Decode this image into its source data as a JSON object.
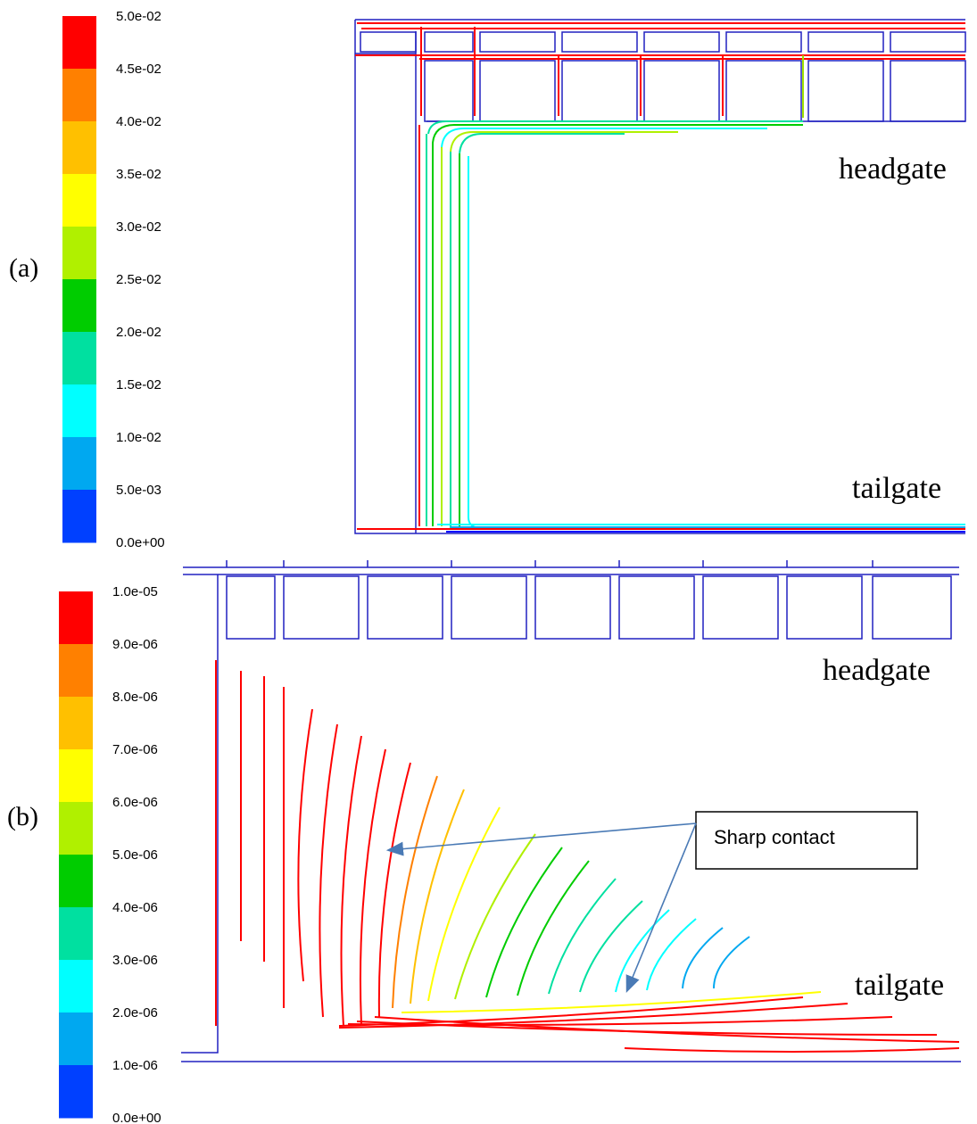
{
  "panel_a": {
    "label": "(a)",
    "colorbar": {
      "ticks": [
        "5.0e-02",
        "4.5e-02",
        "4.0e-02",
        "3.5e-02",
        "3.0e-02",
        "2.5e-02",
        "2.0e-02",
        "1.5e-02",
        "1.0e-02",
        "5.0e-03",
        "0.0e+00"
      ],
      "colors": [
        "#ff0000",
        "#ff8000",
        "#ffc000",
        "#ffff00",
        "#b0f000",
        "#00cc00",
        "#00e0a0",
        "#00ffff",
        "#00a8f0",
        "#0040ff",
        "#0000ff"
      ]
    },
    "headgate_label": "headgate",
    "tailgate_label": "tailgate"
  },
  "panel_b": {
    "label": "(b)",
    "colorbar": {
      "ticks": [
        "1.0e-05",
        "9.0e-06",
        "8.0e-06",
        "7.0e-06",
        "6.0e-06",
        "5.0e-06",
        "4.0e-06",
        "3.0e-06",
        "2.0e-06",
        "1.0e-06",
        "0.0e+00"
      ],
      "colors": [
        "#ff0000",
        "#ff8000",
        "#ffc000",
        "#ffff00",
        "#b0f000",
        "#00cc00",
        "#00e0a0",
        "#00ffff",
        "#00a8f0",
        "#0040ff",
        "#0000ff"
      ]
    },
    "headgate_label": "headgate",
    "tailgate_label": "tailgate",
    "callout_text": "Sharp contact"
  },
  "colors": {
    "wall": "#2020c0",
    "arrow": "#4a7ab5",
    "high": "#ff0000",
    "mid": "#ffff00",
    "low": "#00cc00"
  }
}
